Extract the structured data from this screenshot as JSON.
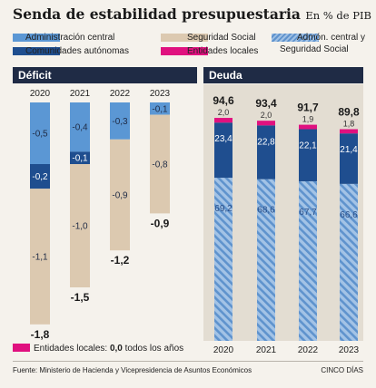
{
  "title": "Senda de estabilidad presupuestaria",
  "unit": "En % de PIB",
  "legend": {
    "admin_central": "Administración central",
    "seguridad_social": "Seguridad Social",
    "admon_ss_line1": "Admón. central y",
    "admon_ss_line2": "Seguridad Social",
    "comunidades": "Comunidades autónomas",
    "entidades": "Entidades locales"
  },
  "colors": {
    "admin_central": "#5b97d4",
    "comunidades": "#1f4e8f",
    "seguridad_social": "#dcc9b0",
    "entidades": "#e0117f",
    "header": "#1f2b45"
  },
  "panels": {
    "deficit": "Déficit",
    "deuda": "Deuda"
  },
  "note": {
    "prefix": "Entidades locales: ",
    "value": "0,0",
    "suffix": " todos los años"
  },
  "source": "Fuente: Ministerio de Hacienda y Vicepresidencia de Asuntos Económicos",
  "credit": "CINCO DÍAS",
  "chart_data": [
    {
      "type": "bar",
      "title": "Déficit",
      "stacked": true,
      "categories": [
        "2020",
        "2021",
        "2022",
        "2023"
      ],
      "series": [
        {
          "name": "Administración central",
          "values": [
            -0.5,
            -0.4,
            -0.3,
            -0.1
          ],
          "labels": [
            "-0,5",
            "-0,4",
            "-0,3",
            "-0,1"
          ]
        },
        {
          "name": "Comunidades autónomas",
          "values": [
            -0.2,
            -0.1,
            0.0,
            0.0
          ],
          "labels": [
            "-0,2",
            "-0,1",
            "",
            ""
          ]
        },
        {
          "name": "Seguridad Social",
          "values": [
            -1.1,
            -1.0,
            -0.9,
            -0.8
          ],
          "labels": [
            "-1,1",
            "-1,0",
            "-0,9",
            "-0,8"
          ]
        },
        {
          "name": "Entidades locales",
          "values": [
            0.0,
            0.0,
            0.0,
            0.0
          ]
        }
      ],
      "totals": [
        -1.8,
        -1.5,
        -1.2,
        -0.9
      ],
      "total_labels": [
        "-1,8",
        "-1,5",
        "-1,2",
        "-0,9"
      ]
    },
    {
      "type": "bar",
      "title": "Deuda",
      "stacked": true,
      "categories": [
        "2020",
        "2021",
        "2022",
        "2023"
      ],
      "series": [
        {
          "name": "Admón. central y Seguridad Social",
          "values": [
            69.2,
            68.6,
            67.7,
            66.6
          ],
          "labels": [
            "69,2",
            "68,6",
            "67,7",
            "66,6"
          ]
        },
        {
          "name": "Comunidades autónomas",
          "values": [
            23.4,
            22.8,
            22.1,
            21.4
          ],
          "labels": [
            "23,4",
            "22,8",
            "22,1",
            "21,4"
          ]
        },
        {
          "name": "Entidades locales",
          "values": [
            2.0,
            2.0,
            1.9,
            1.8
          ],
          "labels": [
            "2,0",
            "2,0",
            "1,9",
            "1,8"
          ]
        }
      ],
      "totals": [
        94.6,
        93.4,
        91.7,
        89.8
      ],
      "total_labels": [
        "94,6",
        "93,4",
        "91,7",
        "89,8"
      ]
    }
  ]
}
